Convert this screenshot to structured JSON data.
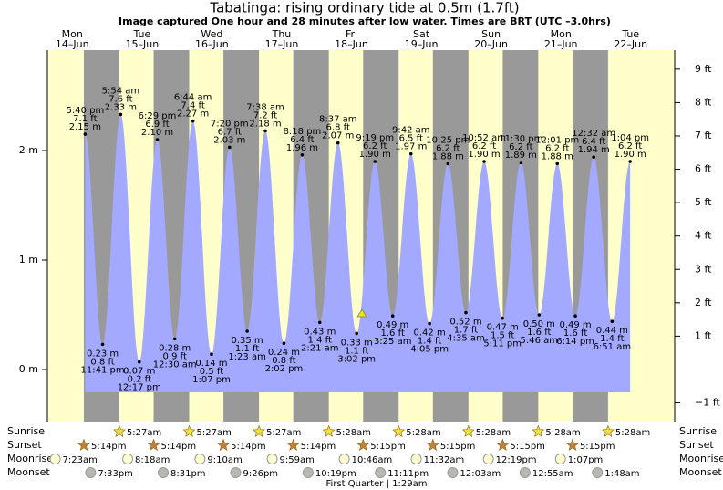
{
  "chart_data": {
    "type": "tide",
    "title": "Tabatinga: rising  ordinary tide at 0.5m (1.7ft)",
    "subtitle": "Image captured One hour and 28 minutes after low water. Times are BRT (UTC –3.0hrs)",
    "ylim": [
      -0.475,
      2.917
    ],
    "yticks": [
      {
        "value": 0,
        "label": "0 m"
      },
      {
        "value": 1,
        "label": "1 m"
      },
      {
        "value": 2,
        "label": "2 m"
      }
    ],
    "y2lim": [
      -1.56,
      9.57
    ],
    "y2ticks": [
      {
        "value": -1,
        "label": "−1 ft"
      },
      {
        "value": 1,
        "label": "1 ft"
      },
      {
        "value": 2,
        "label": "2 ft"
      },
      {
        "value": 3,
        "label": "3 ft"
      },
      {
        "value": 4,
        "label": "4 ft"
      },
      {
        "value": 5,
        "label": "5 ft"
      },
      {
        "value": 6,
        "label": "6 ft"
      },
      {
        "value": 7,
        "label": "7 ft"
      },
      {
        "value": 8,
        "label": "8 ft"
      },
      {
        "value": 9,
        "label": "9 ft"
      }
    ],
    "day_color": "#ffffcc",
    "night_color": "#999999",
    "water_color": "#a3a9ff",
    "date_color": "#dd0000",
    "current_level": 0.5,
    "row_labels": {
      "sunrise": "Sunrise",
      "sunset": "Sunset",
      "moonrise": "Moonrise",
      "moonset": "Moonset"
    },
    "moon_phase": "First Quarter | 1:29am",
    "days": [
      {
        "weekday": "Mon",
        "date": "14–Jun",
        "sunset": "5:14pm",
        "moonrise": "7:23am",
        "moonset": "7:33pm",
        "tides": [
          {
            "time": "5:40 pm",
            "ft": "7.1 ft",
            "value": 2.15,
            "value_label": "2.15 m"
          },
          {
            "time": "11:41 pm",
            "ft": "0.8 ft",
            "value": 0.23,
            "value_label": "0.23 m"
          }
        ]
      },
      {
        "weekday": "Tue",
        "date": "15–Jun",
        "sunrise": "5:27am",
        "sunset": "5:14pm",
        "moonrise": "8:18am",
        "moonset": "8:31pm",
        "tides": [
          {
            "time": "5:54 am",
            "ft": "7.6 ft",
            "value": 2.33,
            "value_label": "2.33 m"
          },
          {
            "time": "12:17 pm",
            "ft": "0.2 ft",
            "value": 0.07,
            "value_label": "0.07 m"
          },
          {
            "time": "6:29 pm",
            "ft": "6.9 ft",
            "value": 2.1,
            "value_label": "2.10 m"
          }
        ]
      },
      {
        "weekday": "Wed",
        "date": "16–Jun",
        "sunrise": "5:27am",
        "sunset": "5:14pm",
        "moonrise": "9:10am",
        "moonset": "9:26pm",
        "tides": [
          {
            "time": "12:30 am",
            "ft": "0.9 ft",
            "value": 0.28,
            "value_label": "0.28 m"
          },
          {
            "time": "6:44 am",
            "ft": "7.4 ft",
            "value": 2.27,
            "value_label": "2.27 m"
          },
          {
            "time": "1:07 pm",
            "ft": "0.5 ft",
            "value": 0.14,
            "value_label": "0.14 m"
          },
          {
            "time": "7:20 pm",
            "ft": "6.7 ft",
            "value": 2.03,
            "value_label": "2.03 m"
          }
        ]
      },
      {
        "weekday": "Thu",
        "date": "17–Jun",
        "sunrise": "5:27am",
        "sunset": "5:14pm",
        "moonrise": "9:59am",
        "moonset": "10:19pm",
        "tides": [
          {
            "time": "1:23 am",
            "ft": "1.1 ft",
            "value": 0.35,
            "value_label": "0.35 m"
          },
          {
            "time": "7:38 am",
            "ft": "7.2 ft",
            "value": 2.18,
            "value_label": "2.18 m"
          },
          {
            "time": "2:02 pm",
            "ft": "0.8 ft",
            "value": 0.24,
            "value_label": "0.24 m"
          },
          {
            "time": "8:18 pm",
            "ft": "6.4 ft",
            "value": 1.96,
            "value_label": "1.96 m"
          }
        ]
      },
      {
        "weekday": "Fri",
        "date": "18–Jun",
        "sunrise": "5:28am",
        "sunset": "5:15pm",
        "moonrise": "10:46am",
        "moonset": "11:11pm",
        "tides": [
          {
            "time": "2:21 am",
            "ft": "1.4 ft",
            "value": 0.43,
            "value_label": "0.43 m"
          },
          {
            "time": "8:37 am",
            "ft": "6.8 ft",
            "value": 2.07,
            "value_label": "2.07 m"
          },
          {
            "time": "3:02 pm",
            "ft": "1.1 ft",
            "value": 0.33,
            "value_label": "0.33 m"
          },
          {
            "time": "9:19 pm",
            "ft": "6.2 ft",
            "value": 1.9,
            "value_label": "1.90 m"
          }
        ]
      },
      {
        "weekday": "Sat",
        "date": "19–Jun",
        "sunrise": "5:28am",
        "sunset": "5:15pm",
        "moonrise": "11:32am",
        "tides": [
          {
            "time": "3:25 am",
            "ft": "1.6 ft",
            "value": 0.49,
            "value_label": "0.49 m"
          },
          {
            "time": "9:42 am",
            "ft": "6.5 ft",
            "value": 1.97,
            "value_label": "1.97 m"
          },
          {
            "time": "4:05 pm",
            "ft": "1.4 ft",
            "value": 0.42,
            "value_label": "0.42 m"
          },
          {
            "time": "10:25 pm",
            "ft": "6.2 ft",
            "value": 1.88,
            "value_label": "1.88 m"
          }
        ]
      },
      {
        "weekday": "Sun",
        "date": "20–Jun",
        "sunrise": "5:28am",
        "sunset": "5:15pm",
        "moonrise": "12:19pm",
        "moonset": "12:03am",
        "tides": [
          {
            "time": "4:35 am",
            "ft": "1.7 ft",
            "value": 0.52,
            "value_label": "0.52 m"
          },
          {
            "time": "10:52 am",
            "ft": "6.2 ft",
            "value": 1.9,
            "value_label": "1.90 m"
          },
          {
            "time": "5:11 pm",
            "ft": "1.5 ft",
            "value": 0.47,
            "value_label": "0.47 m"
          },
          {
            "time": "11:30 pm",
            "ft": "6.2 ft",
            "value": 1.89,
            "value_label": "1.89 m"
          }
        ]
      },
      {
        "weekday": "Mon",
        "date": "21–Jun",
        "sunrise": "5:28am",
        "sunset": "5:15pm",
        "moonrise": "1:07pm",
        "moonset": "12:55am",
        "tides": [
          {
            "time": "5:46 am",
            "ft": "1.6 ft",
            "value": 0.5,
            "value_label": "0.50 m"
          },
          {
            "time": "12:01 pm",
            "ft": "6.2 ft",
            "value": 1.88,
            "value_label": "1.88 m"
          },
          {
            "time": "6:14 pm",
            "ft": "1.6 ft",
            "value": 0.49,
            "value_label": "0.49 m"
          }
        ]
      },
      {
        "weekday": "Tue",
        "date": "22–Jun",
        "sunrise": "5:28am",
        "moonset": "1:48am",
        "tides": [
          {
            "time": "12:32 am",
            "ft": "6.4 ft",
            "value": 1.94,
            "value_label": "1.94 m"
          },
          {
            "time": "6:51 am",
            "ft": "1.4 ft",
            "value": 0.44,
            "value_label": "0.44 m"
          },
          {
            "time": "1:04 pm",
            "ft": "6.2 ft",
            "value": 1.9,
            "value_label": "1.90 m"
          }
        ]
      }
    ]
  }
}
